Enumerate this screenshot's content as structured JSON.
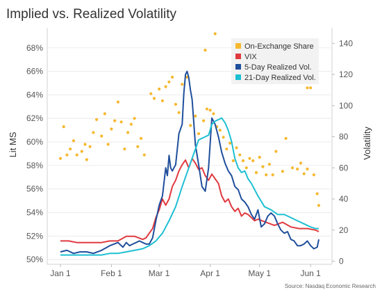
{
  "chart_data": {
    "type": "line",
    "title": "Implied vs. Realized Volatility",
    "source": "Source: Nasdaq Economic Research",
    "x_ticks": [
      "Jan 1",
      "Feb 1",
      "Mar 1",
      "Apr 1",
      "May 1",
      "Jun 1"
    ],
    "x_tick_days": [
      0,
      31,
      60,
      91,
      121,
      152
    ],
    "left_axis": {
      "label": "Lit MS",
      "ticks": [
        "50%",
        "52%",
        "54%",
        "56%",
        "58%",
        "60%",
        "62%",
        "64%",
        "66%",
        "68%"
      ],
      "tick_values": [
        50,
        52,
        54,
        56,
        58,
        60,
        62,
        64,
        66,
        68
      ],
      "range": [
        49.6,
        69.7
      ]
    },
    "right_axis": {
      "label": "Volatility",
      "ticks": [
        "0",
        "20",
        "40",
        "60",
        "80",
        "100",
        "120",
        "140"
      ],
      "tick_values": [
        0,
        20,
        40,
        60,
        80,
        100,
        120,
        140
      ],
      "range": [
        -2,
        150
      ]
    },
    "legend": {
      "placement": "top-right",
      "items": [
        {
          "label": "On-Exchange Share",
          "color": "#F5B82E"
        },
        {
          "label": "VIX",
          "color": "#E0393E"
        },
        {
          "label": "5-Day Realized Vol.",
          "color": "#1F4E9C"
        },
        {
          "label": "21-Day Realized Vol.",
          "color": "#1DBFD2"
        }
      ]
    },
    "series": [
      {
        "name": "On-Exchange Share",
        "kind": "scatter",
        "axis": "left",
        "color": "#F5B82E",
        "x": [
          0,
          2,
          4,
          6,
          8,
          10,
          13,
          15,
          16,
          18,
          20,
          22,
          25,
          27,
          29,
          31,
          33,
          35,
          37,
          39,
          41,
          43,
          45,
          47,
          49,
          51,
          55,
          57,
          60,
          62,
          64,
          66,
          68,
          70,
          72,
          74,
          77,
          79,
          82,
          84,
          87,
          89,
          91,
          93,
          95,
          97,
          99,
          101,
          103,
          105,
          107,
          109,
          111,
          113,
          115,
          117,
          119,
          121,
          123,
          125,
          127,
          129,
          131,
          135,
          137,
          141,
          144,
          146,
          148,
          150,
          152,
          154,
          156,
          157
        ],
        "y": [
          58.6,
          61.3,
          58.9,
          59.4,
          60.1,
          58.9,
          59.2,
          59.8,
          58.5,
          59.6,
          60.8,
          61.9,
          60.5,
          62.4,
          59.8,
          61.1,
          61.8,
          63.4,
          61.7,
          59.4,
          60.8,
          61.5,
          62.0,
          59.6,
          60.3,
          58.9,
          64.1,
          63.7,
          64.5,
          63.5,
          64.7,
          65.1,
          65.5,
          63.2,
          62.5,
          64.9,
          65.5,
          61.4,
          62.2,
          60.7,
          61.8,
          62.8,
          62.7,
          62.4,
          61.3,
          61.0,
          60.4,
          59.4,
          59.9,
          58.4,
          59.5,
          58.9,
          58.4,
          57.8,
          58.6,
          58.4,
          57.4,
          58.7,
          57.9,
          57.2,
          58.1,
          57.2,
          59.2,
          57.5,
          60.3,
          57.8,
          57.7,
          58.2,
          57.3,
          57.7,
          64.6,
          57.2,
          55.6,
          54.6
        ],
        "outliers": [
          [
            94,
            69.2
          ],
          [
            88,
            67.8
          ],
          [
            150,
            64.6
          ]
        ]
      },
      {
        "name": "VIX",
        "kind": "line",
        "axis": "right",
        "color": "#E0393E",
        "x": [
          0,
          5,
          10,
          15,
          20,
          25,
          30,
          35,
          40,
          45,
          50,
          52,
          54,
          56,
          58,
          60,
          62,
          64,
          66,
          68,
          70,
          72,
          74,
          76,
          78,
          80,
          82,
          84,
          86,
          88,
          90,
          92,
          94,
          96,
          98,
          100,
          102,
          104,
          106,
          108,
          110,
          112,
          114,
          116,
          118,
          120,
          125,
          130,
          135,
          140,
          145,
          150,
          155,
          157
        ],
        "y": [
          13,
          13,
          12,
          12,
          12,
          12,
          13,
          13,
          16,
          16,
          14,
          15,
          18,
          21,
          28,
          33,
          40,
          36,
          40,
          48,
          52,
          58,
          62,
          65,
          60,
          66,
          63,
          59,
          60,
          55,
          52,
          56,
          53,
          50,
          42,
          38,
          40,
          35,
          32,
          34,
          29,
          31,
          30,
          28,
          26,
          27,
          25,
          23,
          25,
          22,
          21,
          21,
          20,
          19
        ]
      },
      {
        "name": "5-Day Realized Vol.",
        "kind": "line",
        "axis": "right",
        "color": "#1F4E9C",
        "x": [
          0,
          4,
          8,
          12,
          16,
          20,
          25,
          30,
          35,
          38,
          40,
          42,
          44,
          46,
          48,
          50,
          52,
          54,
          56,
          58,
          60,
          62,
          64,
          65,
          66,
          67,
          68,
          70,
          72,
          74,
          75,
          76,
          77,
          78,
          79,
          80,
          82,
          84,
          86,
          88,
          90,
          92,
          94,
          96,
          98,
          100,
          102,
          104,
          106,
          108,
          110,
          112,
          114,
          116,
          118,
          120,
          122,
          124,
          126,
          128,
          130,
          132,
          134,
          136,
          138,
          140,
          142,
          144,
          146,
          148,
          150,
          152,
          154,
          156,
          157
        ],
        "y": [
          6,
          7,
          5,
          6,
          6,
          5,
          7,
          10,
          12,
          9,
          12,
          10,
          11,
          12,
          13,
          12,
          11,
          11,
          15,
          26,
          36,
          42,
          60,
          55,
          68,
          60,
          58,
          62,
          82,
          88,
          108,
          120,
          122,
          118,
          110,
          104,
          75,
          62,
          48,
          45,
          60,
          92,
          88,
          80,
          70,
          63,
          58,
          55,
          48,
          46,
          40,
          38,
          35,
          30,
          27,
          33,
          22,
          24,
          29,
          31,
          29,
          24,
          20,
          18,
          19,
          14,
          13,
          10,
          10,
          11,
          13,
          10,
          8,
          9,
          14
        ]
      },
      {
        "name": "21-Day Realized Vol.",
        "kind": "line",
        "axis": "right",
        "color": "#1DBFD2",
        "x": [
          0,
          5,
          10,
          15,
          20,
          25,
          30,
          35,
          40,
          45,
          50,
          54,
          58,
          62,
          66,
          70,
          74,
          78,
          82,
          84,
          86,
          88,
          90,
          92,
          94,
          96,
          98,
          100,
          102,
          104,
          106,
          108,
          110,
          112,
          114,
          116,
          118,
          120,
          124,
          128,
          132,
          136,
          140,
          144,
          148,
          152,
          155,
          157
        ],
        "y": [
          4,
          4,
          4,
          4,
          4,
          4,
          5,
          5,
          6,
          7,
          8,
          10,
          13,
          18,
          26,
          35,
          48,
          60,
          72,
          78,
          79,
          80,
          81,
          88,
          90,
          91,
          92,
          89,
          84,
          77,
          66,
          60,
          57,
          58,
          53,
          50,
          46,
          42,
          35,
          33,
          30,
          30,
          28,
          26,
          24,
          22,
          21,
          21
        ]
      }
    ]
  }
}
